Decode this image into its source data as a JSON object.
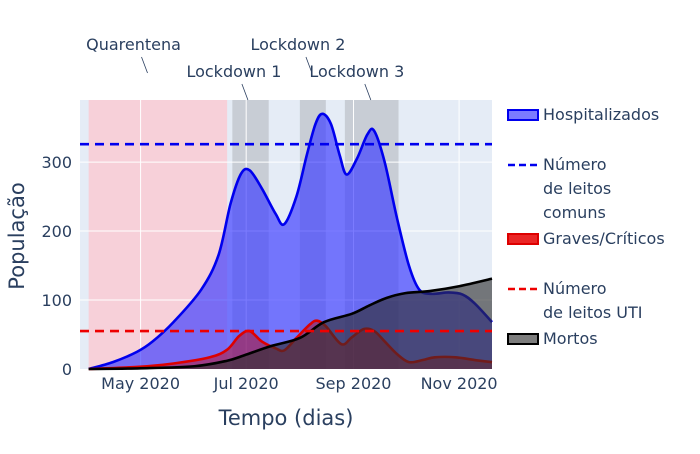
{
  "chart_data": {
    "type": "area",
    "xlabel": "Tempo (dias)",
    "ylabel": "População",
    "x_domain": [
      "2020-03-27",
      "2020-11-20"
    ],
    "ylim": [
      0,
      390
    ],
    "x_ticks": [
      {
        "date": "2020-05-01",
        "label": "May 2020"
      },
      {
        "date": "2020-07-01",
        "label": "Jul 2020"
      },
      {
        "date": "2020-09-01",
        "label": "Sep 2020"
      },
      {
        "date": "2020-11-01",
        "label": "Nov 2020"
      }
    ],
    "y_ticks": [
      0,
      100,
      200,
      300
    ],
    "grid": true,
    "legend_position": "right",
    "shaded_periods": [
      {
        "start": "2020-04-01",
        "end": "2020-06-20",
        "color": "#f7d0d9"
      },
      {
        "start": "2020-06-23",
        "end": "2020-07-14",
        "color": "#c8cdd5"
      },
      {
        "start": "2020-08-01",
        "end": "2020-08-16",
        "color": "#c8cdd5"
      },
      {
        "start": "2020-08-27",
        "end": "2020-09-27",
        "color": "#c8cdd5"
      }
    ],
    "annotations": [
      {
        "text": "Quarentena",
        "date": "2020-05-05",
        "level": 1
      },
      {
        "text": "Lockdown 1",
        "date": "2020-07-02",
        "level": 2
      },
      {
        "text": "Lockdown 2",
        "date": "2020-08-08",
        "level": 1
      },
      {
        "text": "Lockdown 3",
        "date": "2020-09-11",
        "level": 2
      }
    ],
    "hlines": [
      {
        "name": "Número de leitos comuns",
        "y": 326,
        "color": "#0000ee"
      },
      {
        "name": "Número de leitos UTI",
        "y": 55,
        "color": "#ee0000"
      }
    ],
    "series": [
      {
        "name": "Hospitalizados",
        "color": "#0000ee",
        "fill": "rgba(60,60,255,0.68)",
        "points": [
          [
            "2020-04-01",
            0
          ],
          [
            "2020-04-15",
            10
          ],
          [
            "2020-04-29",
            25
          ],
          [
            "2020-05-08",
            40
          ],
          [
            "2020-05-20",
            68
          ],
          [
            "2020-06-05",
            115
          ],
          [
            "2020-06-15",
            165
          ],
          [
            "2020-06-22",
            240
          ],
          [
            "2020-06-28",
            283
          ],
          [
            "2020-07-03",
            288
          ],
          [
            "2020-07-10",
            262
          ],
          [
            "2020-07-18",
            225
          ],
          [
            "2020-07-23",
            210
          ],
          [
            "2020-07-30",
            250
          ],
          [
            "2020-08-05",
            310
          ],
          [
            "2020-08-10",
            355
          ],
          [
            "2020-08-14",
            370
          ],
          [
            "2020-08-19",
            355
          ],
          [
            "2020-08-24",
            310
          ],
          [
            "2020-08-28",
            282
          ],
          [
            "2020-09-03",
            305
          ],
          [
            "2020-09-09",
            340
          ],
          [
            "2020-09-13",
            345
          ],
          [
            "2020-09-19",
            300
          ],
          [
            "2020-09-26",
            220
          ],
          [
            "2020-10-03",
            150
          ],
          [
            "2020-10-09",
            115
          ],
          [
            "2020-10-16",
            109
          ],
          [
            "2020-10-26",
            111
          ],
          [
            "2020-11-03",
            108
          ],
          [
            "2020-11-10",
            95
          ],
          [
            "2020-11-20",
            68
          ]
        ]
      },
      {
        "name": "Graves/Críticos",
        "color": "#dd0000",
        "fill": "rgba(200,0,0,0.45)",
        "points": [
          [
            "2020-04-01",
            0
          ],
          [
            "2020-04-29",
            3
          ],
          [
            "2020-05-20",
            8
          ],
          [
            "2020-06-10",
            17
          ],
          [
            "2020-06-20",
            28
          ],
          [
            "2020-06-27",
            48
          ],
          [
            "2020-07-03",
            55
          ],
          [
            "2020-07-10",
            40
          ],
          [
            "2020-07-18",
            30
          ],
          [
            "2020-07-23",
            27
          ],
          [
            "2020-07-30",
            45
          ],
          [
            "2020-08-07",
            65
          ],
          [
            "2020-08-11",
            70
          ],
          [
            "2020-08-16",
            62
          ],
          [
            "2020-08-25",
            36
          ],
          [
            "2020-08-31",
            46
          ],
          [
            "2020-09-07",
            58
          ],
          [
            "2020-09-13",
            55
          ],
          [
            "2020-09-19",
            40
          ],
          [
            "2020-09-26",
            22
          ],
          [
            "2020-10-03",
            10
          ],
          [
            "2020-10-11",
            13
          ],
          [
            "2020-10-18",
            17
          ],
          [
            "2020-10-30",
            17
          ],
          [
            "2020-11-10",
            13
          ],
          [
            "2020-11-20",
            10
          ]
        ]
      },
      {
        "name": "Mortos",
        "color": "#000000",
        "fill": "rgba(45,45,45,0.62)",
        "points": [
          [
            "2020-04-01",
            0
          ],
          [
            "2020-05-01",
            1
          ],
          [
            "2020-06-01",
            4
          ],
          [
            "2020-06-20",
            12
          ],
          [
            "2020-06-30",
            20
          ],
          [
            "2020-07-15",
            33
          ],
          [
            "2020-08-01",
            45
          ],
          [
            "2020-08-15",
            68
          ],
          [
            "2020-08-31",
            80
          ],
          [
            "2020-09-10",
            92
          ],
          [
            "2020-09-20",
            103
          ],
          [
            "2020-10-01",
            110
          ],
          [
            "2020-10-15",
            113
          ],
          [
            "2020-11-01",
            120
          ],
          [
            "2020-11-20",
            131
          ]
        ]
      }
    ],
    "legend": [
      {
        "type": "area",
        "label_lines": [
          "Hospitalizados"
        ],
        "color": "#0000ee",
        "fill": "rgba(60,60,255,0.68)"
      },
      {
        "type": "dash",
        "label_lines": [
          "Número",
          "de leitos",
          "comuns"
        ],
        "color": "#0000ee"
      },
      {
        "type": "area",
        "label_lines": [
          "Graves/Críticos"
        ],
        "color": "#dd0000",
        "fill": "rgba(230,0,0,0.85)"
      },
      {
        "type": "dash",
        "label_lines": [
          "Número",
          "de leitos UTI"
        ],
        "color": "#ee0000"
      },
      {
        "type": "area",
        "label_lines": [
          "Mortos"
        ],
        "color": "#000000",
        "fill": "rgba(45,45,45,0.62)"
      }
    ]
  }
}
